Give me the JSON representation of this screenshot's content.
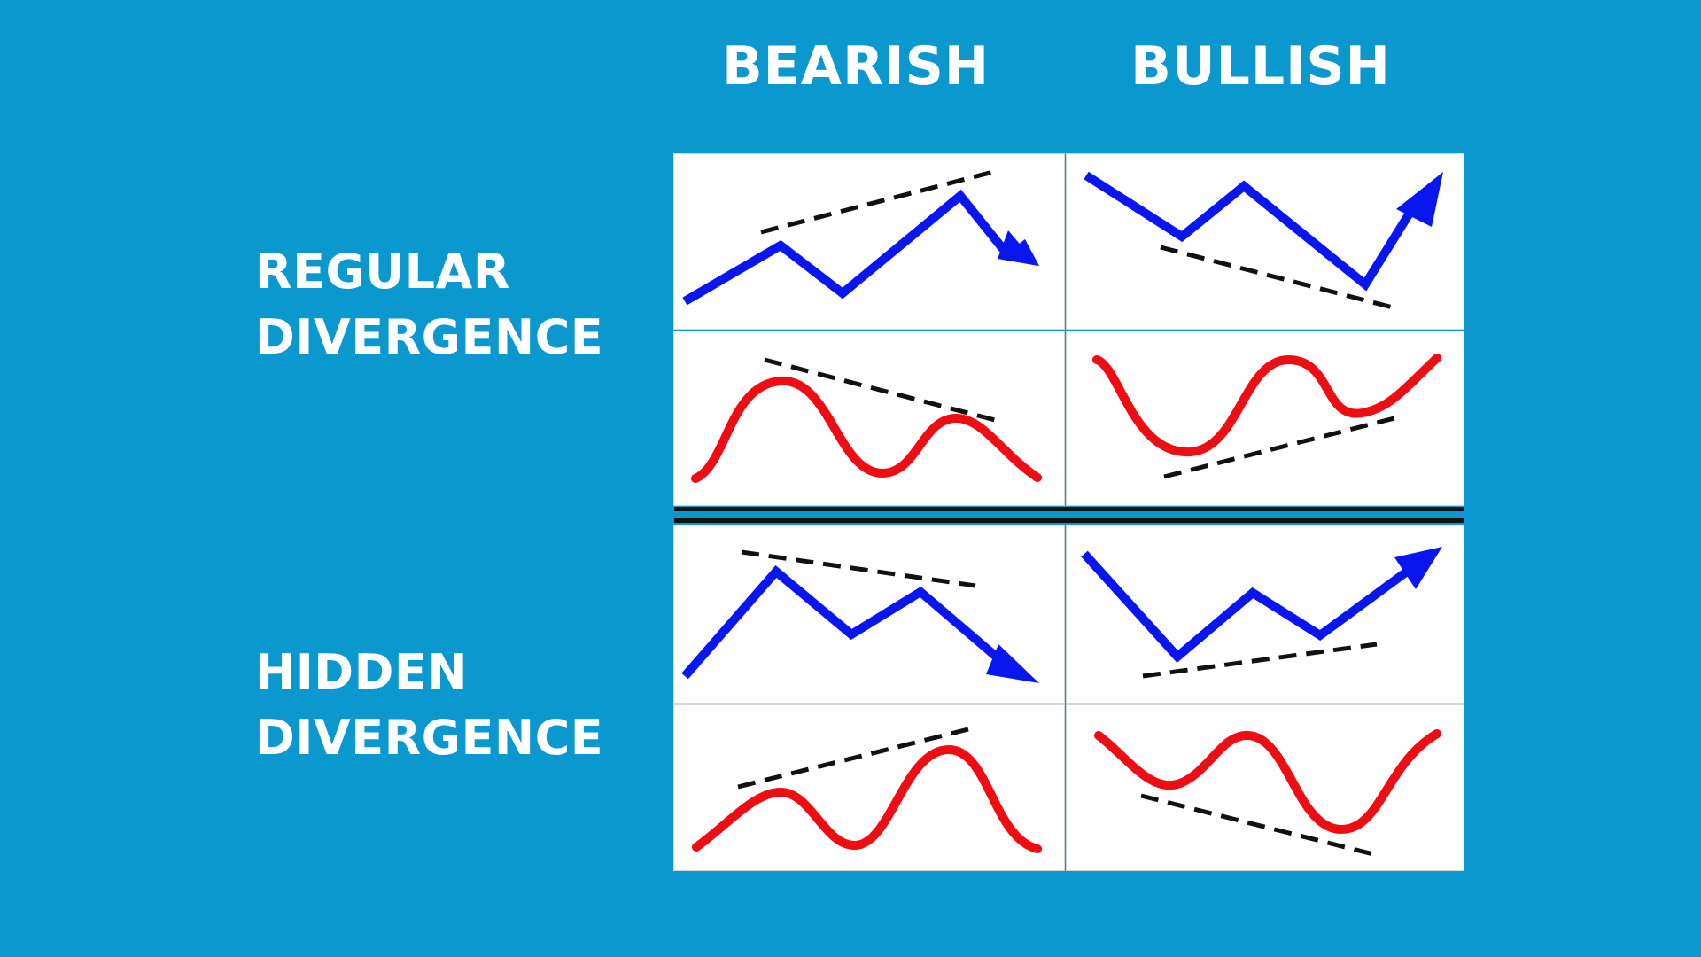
{
  "columns": {
    "bearish": "BEARISH",
    "bullish": "BULLISH"
  },
  "rows": {
    "regular": {
      "line1": "REGULAR",
      "line2": "DIVERGENCE"
    },
    "hidden": {
      "line1": "HIDDEN",
      "line2": "DIVERGENCE"
    }
  },
  "colors": {
    "background": "#0a98cf",
    "price_line": "#0a16f0",
    "indicator_line": "#ee0d12",
    "trendline": "#111111",
    "panel": "#ffffff"
  }
}
